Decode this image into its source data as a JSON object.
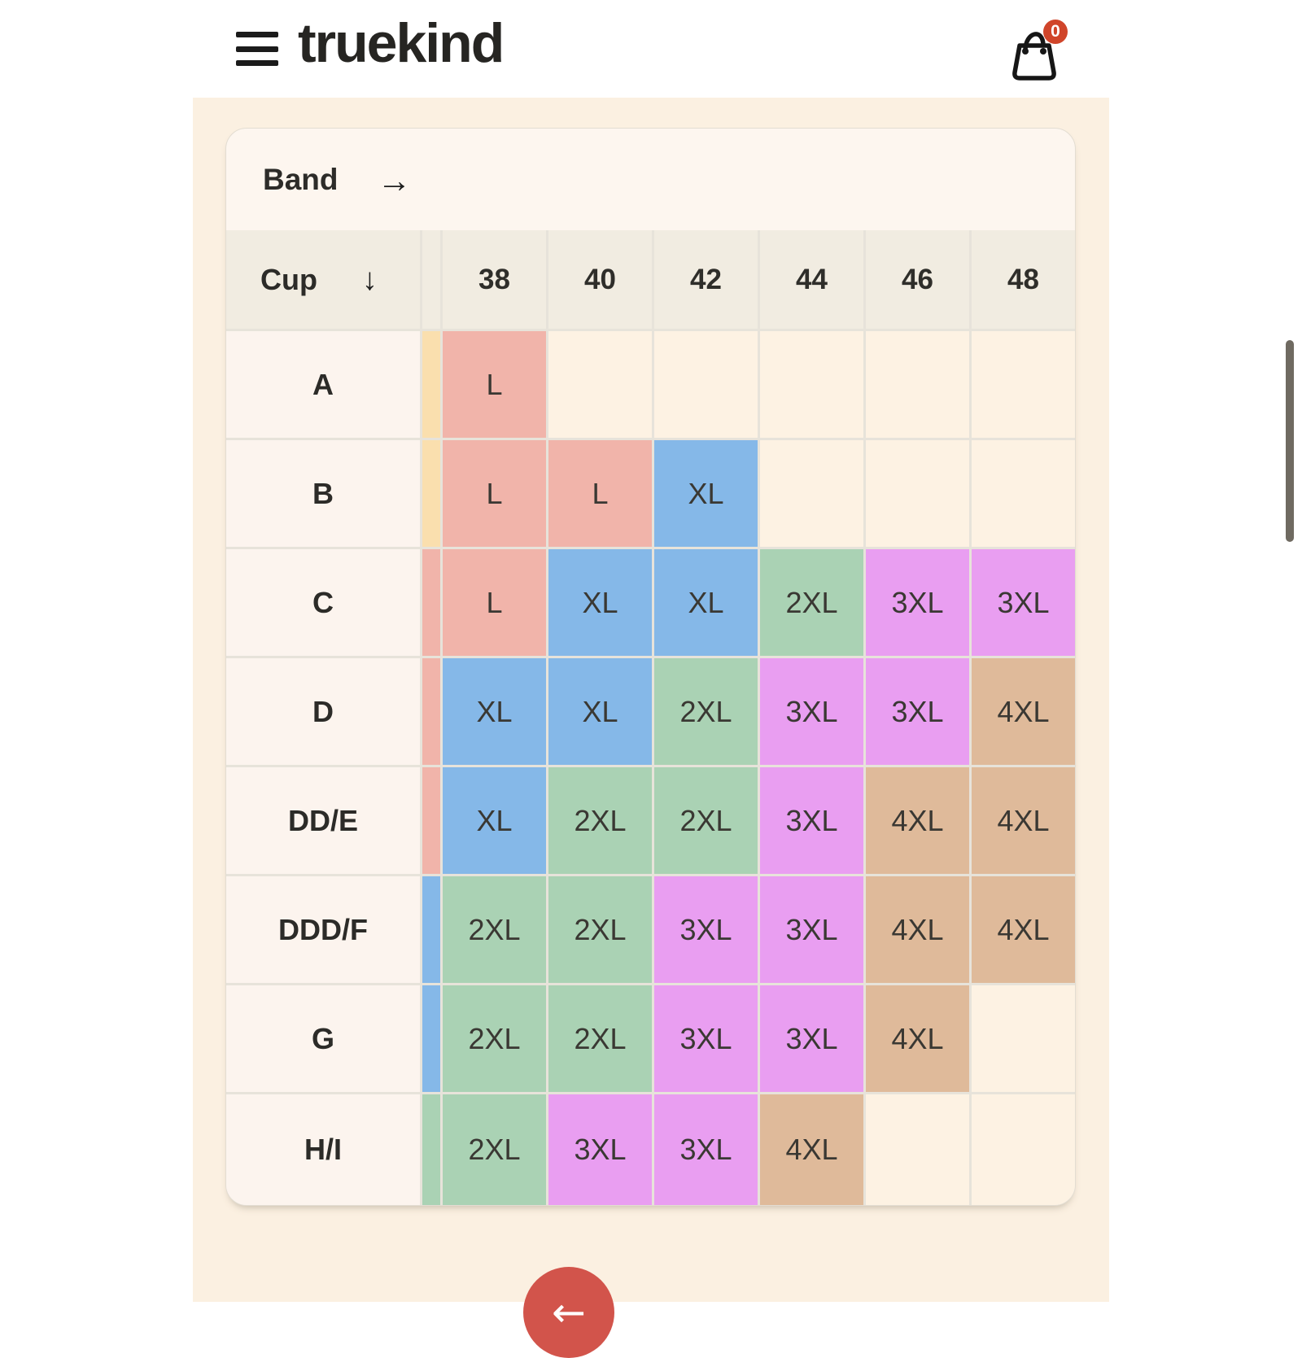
{
  "topbar": {
    "brand": "truekind",
    "cart": {
      "count": "0",
      "badge_color": "#d0452a"
    }
  },
  "chart": {
    "band_label": "Band",
    "band_arrow": "→",
    "cup_label": "Cup",
    "cup_arrow": "↓",
    "band_sizes": [
      "38",
      "40",
      "42",
      "44",
      "46",
      "48"
    ],
    "colors": {
      "pink": "#f1b4aa",
      "blue": "#85b8e8",
      "green": "#aad2b4",
      "purple": "#e99ef1",
      "tan": "#dfba9a",
      "yellow": "#fadfae",
      "empty": "#fdf2e3"
    },
    "rows": [
      {
        "cup": "A",
        "strip": "yellow",
        "cells": [
          {
            "label": "L",
            "color": "pink"
          },
          null,
          null,
          null,
          null,
          null
        ]
      },
      {
        "cup": "B",
        "strip": "yellow",
        "cells": [
          {
            "label": "L",
            "color": "pink"
          },
          {
            "label": "L",
            "color": "pink"
          },
          {
            "label": "XL",
            "color": "blue"
          },
          null,
          null,
          null
        ]
      },
      {
        "cup": "C",
        "strip": "pink",
        "cells": [
          {
            "label": "L",
            "color": "pink"
          },
          {
            "label": "XL",
            "color": "blue"
          },
          {
            "label": "XL",
            "color": "blue"
          },
          {
            "label": "2XL",
            "color": "green"
          },
          {
            "label": "3XL",
            "color": "purple"
          },
          {
            "label": "3XL",
            "color": "purple"
          }
        ]
      },
      {
        "cup": "D",
        "strip": "pink",
        "cells": [
          {
            "label": "XL",
            "color": "blue"
          },
          {
            "label": "XL",
            "color": "blue"
          },
          {
            "label": "2XL",
            "color": "green"
          },
          {
            "label": "3XL",
            "color": "purple"
          },
          {
            "label": "3XL",
            "color": "purple"
          },
          {
            "label": "4XL",
            "color": "tan"
          }
        ]
      },
      {
        "cup": "DD/E",
        "strip": "pink",
        "cells": [
          {
            "label": "XL",
            "color": "blue"
          },
          {
            "label": "2XL",
            "color": "green"
          },
          {
            "label": "2XL",
            "color": "green"
          },
          {
            "label": "3XL",
            "color": "purple"
          },
          {
            "label": "4XL",
            "color": "tan"
          },
          {
            "label": "4XL",
            "color": "tan"
          }
        ]
      },
      {
        "cup": "DDD/F",
        "strip": "blue",
        "cells": [
          {
            "label": "2XL",
            "color": "green"
          },
          {
            "label": "2XL",
            "color": "green"
          },
          {
            "label": "3XL",
            "color": "purple"
          },
          {
            "label": "3XL",
            "color": "purple"
          },
          {
            "label": "4XL",
            "color": "tan"
          },
          {
            "label": "4XL",
            "color": "tan"
          }
        ]
      },
      {
        "cup": "G",
        "strip": "blue",
        "cells": [
          {
            "label": "2XL",
            "color": "green"
          },
          {
            "label": "2XL",
            "color": "green"
          },
          {
            "label": "3XL",
            "color": "purple"
          },
          {
            "label": "3XL",
            "color": "purple"
          },
          {
            "label": "4XL",
            "color": "tan"
          },
          null
        ]
      },
      {
        "cup": "H/I",
        "strip": "green",
        "cells": [
          {
            "label": "2XL",
            "color": "green"
          },
          {
            "label": "3XL",
            "color": "purple"
          },
          {
            "label": "3XL",
            "color": "purple"
          },
          {
            "label": "4XL",
            "color": "tan"
          },
          null,
          null
        ]
      }
    ]
  },
  "nav": {
    "back_arrow": "←"
  }
}
